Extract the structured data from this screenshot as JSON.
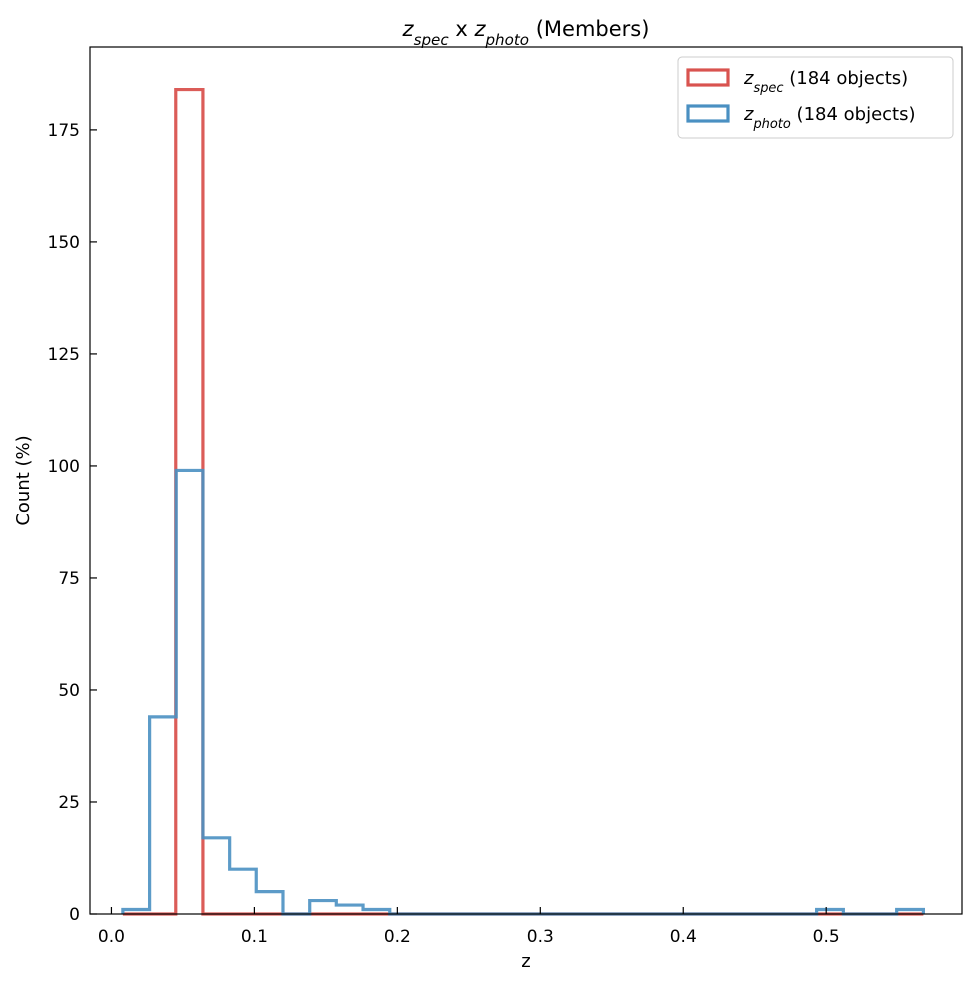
{
  "chart_data": {
    "type": "histogram",
    "title": {
      "main": "z",
      "main_sub": "spec",
      "sep": " x ",
      "second": "z",
      "second_sub": "photo",
      "suffix": " (Members)"
    },
    "xlabel": "z",
    "ylabel": "Count (%)",
    "xlim": [
      -0.015,
      0.595
    ],
    "ylim": [
      0,
      193.5
    ],
    "xticks": [
      0.0,
      0.1,
      0.2,
      0.3,
      0.4,
      0.5
    ],
    "xtick_labels": [
      "0.0",
      "0.1",
      "0.2",
      "0.3",
      "0.4",
      "0.5"
    ],
    "yticks": [
      0,
      25,
      50,
      75,
      100,
      125,
      150,
      175
    ],
    "ytick_labels": [
      "0",
      "25",
      "50",
      "75",
      "100",
      "125",
      "150",
      "175"
    ],
    "grid": false,
    "legend_position": "top-right",
    "series": [
      {
        "name": "z_spec (184 objects)",
        "label_main": "z",
        "label_sub": "spec",
        "label_rest": " (184 objects)",
        "color": "#d9534f",
        "bins": [
          {
            "x0": 0.045,
            "x1": 0.064,
            "count": 184
          }
        ],
        "range": [
          0.008,
          0.568
        ]
      },
      {
        "name": "z_photo (184 objects)",
        "label_main": "z",
        "label_sub": "photo",
        "label_rest": " (184 objects)",
        "color": "#4a90c2",
        "bin_edges": [
          0.008,
          0.0267,
          0.0453,
          0.064,
          0.0827,
          0.1013,
          0.12,
          0.1387,
          0.1573,
          0.176,
          0.1947,
          0.4933,
          0.512,
          0.5307,
          0.5493,
          0.568
        ],
        "counts": [
          1,
          44,
          99,
          17,
          10,
          5,
          0,
          3,
          2,
          1,
          0,
          1,
          0,
          0,
          1
        ]
      }
    ]
  }
}
